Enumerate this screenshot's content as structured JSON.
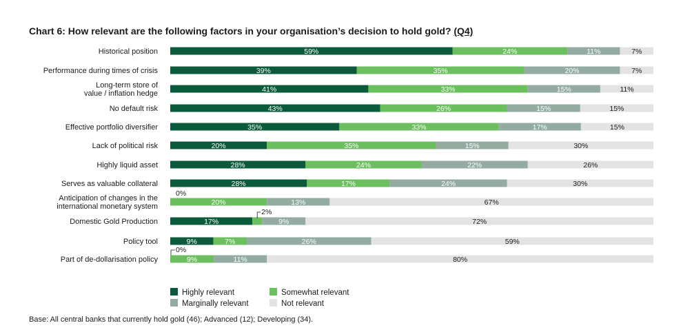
{
  "chart_data": {
    "type": "bar",
    "orientation": "horizontal-stacked",
    "title": "Chart 6: How relevant are the following factors in your organisation’s decision to hold gold?",
    "title_q": "(Q4)",
    "categories": [
      [
        "Historical position"
      ],
      [
        "Performance during times of crisis"
      ],
      [
        "Long-term store of",
        "value / inflation hedge"
      ],
      [
        "No default risk"
      ],
      [
        "Effective portfolio diversifier"
      ],
      [
        "Lack of political risk"
      ],
      [
        "Highly liquid asset"
      ],
      [
        "Serves as valuable collateral"
      ],
      [
        "Anticipation of changes in the",
        "international monetary system"
      ],
      [
        "Domestic Gold Production"
      ],
      [
        "Policy tool"
      ],
      [
        "Part of de-dollarisation policy"
      ]
    ],
    "series": [
      {
        "name": "Highly relevant",
        "color": "#0b5a3b",
        "values": [
          59,
          39,
          41,
          43,
          35,
          20,
          28,
          28,
          0,
          17,
          9,
          0
        ],
        "labels": [
          "59%",
          "39%",
          "41%",
          "43%",
          "35%",
          "20%",
          "28%",
          "28%",
          "0%",
          "17%",
          "9%",
          "0%"
        ]
      },
      {
        "name": "Somewhat relevant",
        "color": "#6cbf5f",
        "values": [
          24,
          35,
          33,
          26,
          33,
          35,
          24,
          17,
          20,
          2,
          7,
          9
        ],
        "labels": [
          "24%",
          "35%",
          "33%",
          "26%",
          "33%",
          "35%",
          "24%",
          "17%",
          "20%",
          "2%",
          "7%",
          "9%"
        ]
      },
      {
        "name": "Marginally relevant",
        "color": "#93aba0",
        "values": [
          11,
          20,
          15,
          15,
          17,
          15,
          22,
          24,
          13,
          9,
          26,
          11
        ],
        "labels": [
          "11%",
          "20%",
          "15%",
          "15%",
          "17%",
          "15%",
          "22%",
          "24%",
          "13%",
          "9%",
          "26%",
          "11%"
        ]
      },
      {
        "name": "Not relevant",
        "color": "#e3e3e3",
        "values": [
          7,
          7,
          11,
          15,
          15,
          30,
          26,
          30,
          67,
          72,
          59,
          80
        ],
        "labels": [
          "7%",
          "7%",
          "11%",
          "15%",
          "15%",
          "30%",
          "26%",
          "30%",
          "67%",
          "72%",
          "59%",
          "80%"
        ]
      }
    ],
    "xlim": [
      0,
      100
    ],
    "legend_position": "bottom-left"
  },
  "legend": {
    "highly": "Highly relevant",
    "somewhat": "Somewhat relevant",
    "marginally": "Marginally relevant",
    "not": "Not relevant"
  },
  "colors": {
    "highly": "#0b5a3b",
    "somewhat": "#6cbf5f",
    "marginally": "#93aba0",
    "not": "#e3e3e3"
  },
  "footnote": "Base: All central banks that currently hold gold (46); Advanced (12); Developing (34)."
}
